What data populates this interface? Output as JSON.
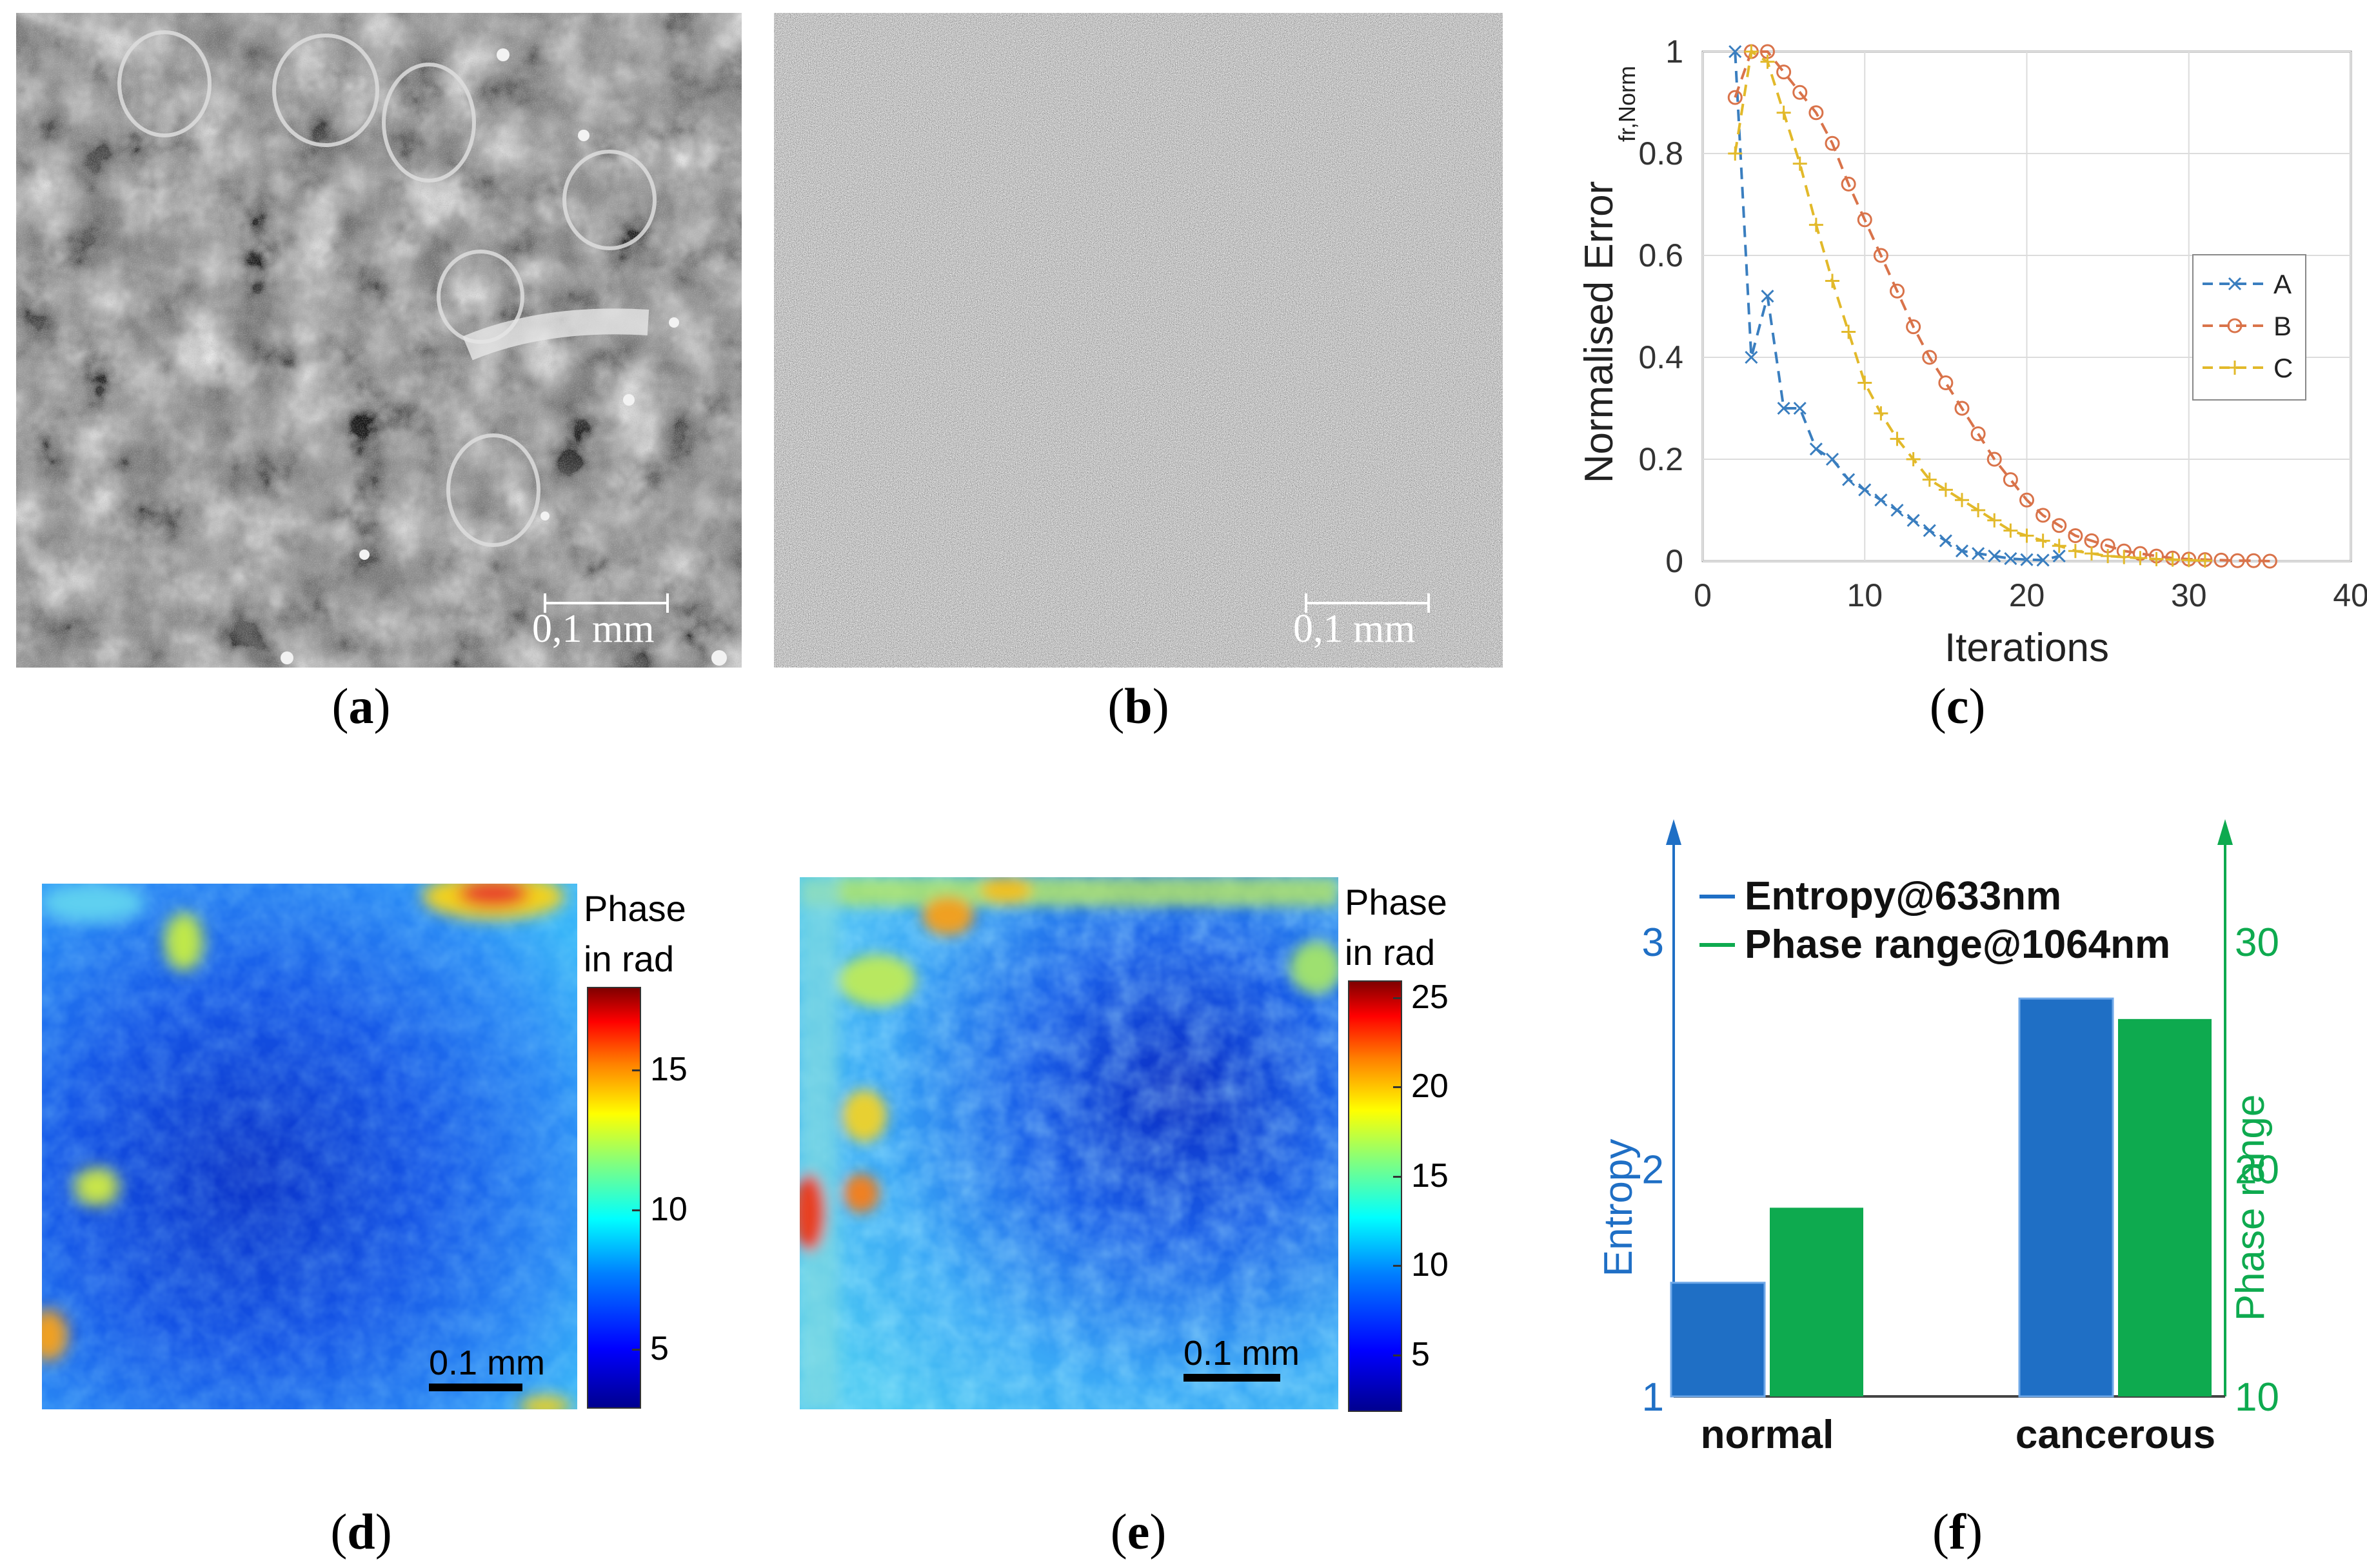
{
  "captions": {
    "a": "a",
    "b": "b",
    "c": "c",
    "d": "d",
    "e": "e",
    "f": "f"
  },
  "panel_a": {
    "scalebar": "0,1 mm"
  },
  "panel_b": {
    "scalebar": "0,1 mm"
  },
  "panel_d": {
    "scalebar": "0.1 mm",
    "colorbar_title_1": "Phase",
    "colorbar_title_2": "in rad",
    "colorbar_ticks": [
      "15",
      "10",
      "5"
    ],
    "colorbar_range": [
      3,
      18
    ]
  },
  "panel_e": {
    "scalebar": "0.1 mm",
    "colorbar_title_1": "Phase",
    "colorbar_title_2": "in rad",
    "colorbar_ticks": [
      "25",
      "20",
      "15",
      "10",
      "5"
    ],
    "colorbar_range": [
      2,
      26
    ]
  },
  "colors": {
    "series_A": "#3a7ebf",
    "series_B": "#d9734a",
    "series_C": "#e2b92a",
    "entropy": "#1f6fc5",
    "phase_range": "#0eaa4f"
  },
  "chart_data": [
    {
      "type": "line",
      "xlabel": "Iterations",
      "ylabel": "Normalised Error",
      "ylabel_subscript": "fr,Norm",
      "xlim": [
        0,
        40
      ],
      "ylim": [
        0,
        1
      ],
      "xticks": [
        "0",
        "10",
        "20",
        "30",
        "40"
      ],
      "yticks": [
        "0",
        "0.2",
        "0.4",
        "0.6",
        "0.8",
        "1"
      ],
      "grid": true,
      "legend_position": "right",
      "series": [
        {
          "name": "A",
          "marker": "x",
          "x": [
            2,
            3,
            4,
            5,
            6,
            7,
            8,
            9,
            10,
            11,
            12,
            13,
            14,
            15,
            16,
            17,
            18,
            19,
            20,
            21,
            22
          ],
          "y": [
            1.0,
            0.4,
            0.52,
            0.3,
            0.3,
            0.22,
            0.2,
            0.16,
            0.14,
            0.12,
            0.1,
            0.08,
            0.06,
            0.04,
            0.02,
            0.015,
            0.01,
            0.005,
            0.003,
            0.002,
            0.01
          ]
        },
        {
          "name": "B",
          "marker": "o",
          "x": [
            2,
            3,
            4,
            5,
            6,
            7,
            8,
            9,
            10,
            11,
            12,
            13,
            14,
            15,
            16,
            17,
            18,
            19,
            20,
            21,
            22,
            23,
            24,
            25,
            26,
            27,
            28,
            29,
            30,
            31,
            32,
            33,
            34,
            35
          ],
          "y": [
            0.91,
            1.0,
            1.0,
            0.96,
            0.92,
            0.88,
            0.82,
            0.74,
            0.67,
            0.6,
            0.53,
            0.46,
            0.4,
            0.35,
            0.3,
            0.25,
            0.2,
            0.16,
            0.12,
            0.09,
            0.07,
            0.05,
            0.04,
            0.03,
            0.02,
            0.015,
            0.01,
            0.006,
            0.004,
            0.003,
            0.002,
            0.001,
            0.001,
            0.0
          ]
        },
        {
          "name": "C",
          "marker": "+",
          "x": [
            2,
            3,
            4,
            5,
            6,
            7,
            8,
            9,
            10,
            11,
            12,
            13,
            14,
            15,
            16,
            17,
            18,
            19,
            20,
            21,
            22,
            23,
            24,
            25,
            26,
            27,
            28,
            29,
            30,
            31
          ],
          "y": [
            0.8,
            1.0,
            0.98,
            0.88,
            0.78,
            0.66,
            0.55,
            0.45,
            0.35,
            0.29,
            0.24,
            0.2,
            0.16,
            0.14,
            0.12,
            0.1,
            0.08,
            0.06,
            0.05,
            0.04,
            0.03,
            0.02,
            0.015,
            0.01,
            0.008,
            0.006,
            0.004,
            0.003,
            0.002,
            0.001
          ]
        }
      ]
    },
    {
      "type": "bar",
      "categories": [
        "normal",
        "cancerous"
      ],
      "left_axis": {
        "label": "Entropy",
        "range": [
          1,
          3
        ],
        "ticks": [
          "1",
          "2",
          "3"
        ]
      },
      "right_axis": {
        "label": "Phase range",
        "range": [
          10,
          30
        ],
        "ticks": [
          "10",
          "20",
          "30"
        ]
      },
      "legend_position": "top",
      "series": [
        {
          "name": "Entropy@633nm",
          "axis": "left",
          "values": [
            1.5,
            2.75
          ]
        },
        {
          "name": "Phase range@1064nm",
          "axis": "right",
          "values": [
            18.3,
            26.6
          ]
        }
      ]
    }
  ]
}
